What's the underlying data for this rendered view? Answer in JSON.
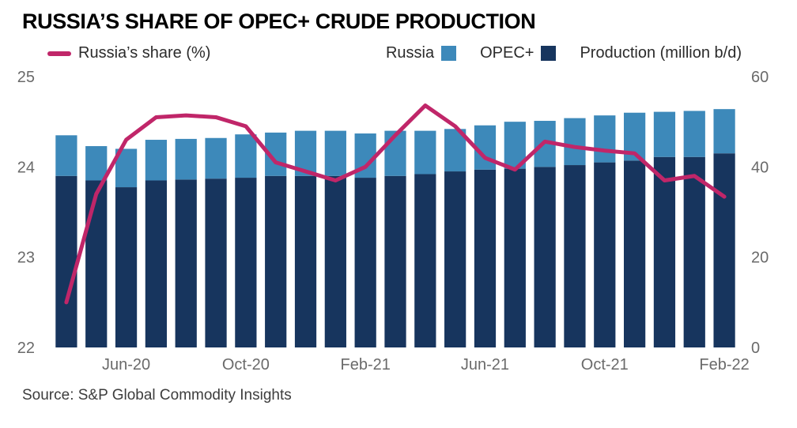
{
  "title": "RUSSIA’S SHARE OF OPEC+ CRUDE PRODUCTION",
  "source": "Source: S&P Global Commodity Insights",
  "legend": {
    "share_label": "Russia’s share (%)",
    "russia_label": "Russia",
    "opec_label": "OPEC+",
    "production_label": "Production (million b/d)"
  },
  "colors": {
    "share_line": "#c02669",
    "russia": "#3d89ba",
    "opec": "#17355e",
    "axis_text": "#6a6a6a"
  },
  "chart_data": {
    "type": "combo",
    "bar_type": "stacked",
    "title": "RUSSIA’S SHARE OF OPEC+ CRUDE PRODUCTION",
    "grid": "off",
    "legend_position": "top",
    "categories": [
      "Apr-20",
      "May-20",
      "Jun-20",
      "Jul-20",
      "Aug-20",
      "Sep-20",
      "Oct-20",
      "Nov-20",
      "Dec-20",
      "Jan-21",
      "Feb-21",
      "Mar-21",
      "Apr-21",
      "May-21",
      "Jun-21",
      "Jul-21",
      "Aug-21",
      "Sep-21",
      "Oct-21",
      "Nov-21",
      "Dec-21",
      "Jan-22",
      "Feb-22"
    ],
    "x_tick_indices": [
      2,
      6,
      10,
      14,
      18,
      22
    ],
    "x_tick_labels": [
      "Jun-20",
      "Oct-20",
      "Feb-21",
      "Jun-21",
      "Oct-21",
      "Feb-22"
    ],
    "left_axis": {
      "label": "Russia's share (%)",
      "range": [
        22,
        25
      ],
      "ticks": [
        22,
        23,
        24,
        25
      ]
    },
    "right_axis": {
      "label": "Production (million b/d)",
      "range": [
        0,
        60
      ],
      "ticks": [
        0,
        20,
        40,
        60
      ]
    },
    "series": [
      {
        "name": "OPEC+",
        "type": "bar",
        "axis": "right",
        "stack_order": "bottom",
        "values": [
          38.0,
          37.0,
          35.5,
          37.0,
          37.2,
          37.4,
          37.6,
          38.0,
          38.0,
          38.0,
          37.6,
          38.0,
          38.4,
          39.0,
          39.4,
          39.6,
          40.0,
          40.4,
          41.0,
          41.4,
          42.2,
          42.2,
          43.0
        ]
      },
      {
        "name": "Russia",
        "type": "bar",
        "axis": "right",
        "stack_order": "top",
        "values": [
          9.0,
          7.6,
          8.5,
          9.0,
          9.0,
          9.0,
          9.6,
          9.6,
          10.0,
          10.0,
          9.8,
          10.0,
          9.6,
          9.4,
          9.8,
          10.4,
          10.2,
          10.4,
          10.4,
          10.6,
          10.0,
          10.2,
          9.8
        ]
      },
      {
        "name": "Russia's share (%)",
        "type": "line",
        "axis": "left",
        "values": [
          22.5,
          23.7,
          24.3,
          24.55,
          24.57,
          24.55,
          24.45,
          24.05,
          23.95,
          23.85,
          24.0,
          24.35,
          24.68,
          24.45,
          24.1,
          23.97,
          24.28,
          24.22,
          24.18,
          24.15,
          23.85,
          23.9,
          23.67
        ]
      }
    ]
  }
}
